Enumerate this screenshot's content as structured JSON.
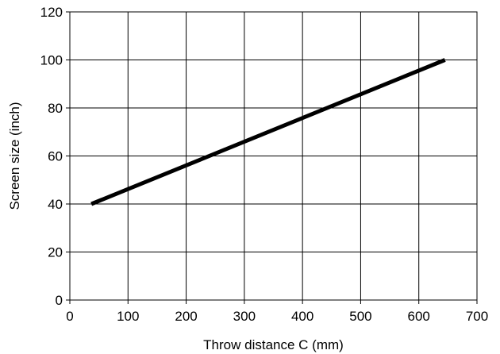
{
  "chart_data": {
    "type": "line",
    "xlabel": "Throw distance C (mm)",
    "ylabel": "Screen size (inch)",
    "xlim": [
      0,
      700
    ],
    "ylim": [
      0,
      120
    ],
    "x_ticks": [
      0,
      100,
      200,
      300,
      400,
      500,
      600,
      700
    ],
    "y_ticks": [
      0,
      20,
      40,
      60,
      80,
      100,
      120
    ],
    "x_tick_labels": [
      "0",
      "100",
      "200",
      "300",
      "400",
      "500",
      "600",
      "700"
    ],
    "y_tick_labels": [
      "0",
      "20",
      "40",
      "60",
      "80",
      "100",
      "120"
    ],
    "grid": true,
    "legend": "none",
    "series": [
      {
        "x": [
          37,
          645
        ],
        "y": [
          40,
          100
        ],
        "color": "#000000"
      }
    ]
  }
}
